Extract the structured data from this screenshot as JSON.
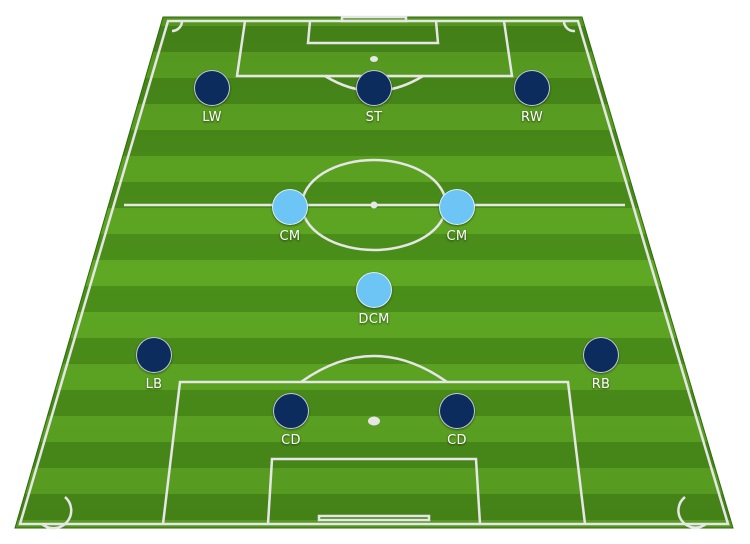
{
  "pitch": {
    "colors": {
      "grass_light": "#5ea823",
      "grass_dark": "#3f7d13",
      "lines": "#e6e6e6"
    }
  },
  "players": [
    {
      "id": "lw",
      "position": "LW",
      "team": "attack"
    },
    {
      "id": "st",
      "position": "ST",
      "team": "attack"
    },
    {
      "id": "rw",
      "position": "RW",
      "team": "attack"
    },
    {
      "id": "cm-left",
      "position": "CM",
      "team": "midfield"
    },
    {
      "id": "cm-right",
      "position": "CM",
      "team": "midfield"
    },
    {
      "id": "dcm",
      "position": "DCM",
      "team": "midfield"
    },
    {
      "id": "lb",
      "position": "LB",
      "team": "defense"
    },
    {
      "id": "rb",
      "position": "RB",
      "team": "defense"
    },
    {
      "id": "cd-left",
      "position": "CD",
      "team": "defense"
    },
    {
      "id": "cd-right",
      "position": "CD",
      "team": "defense"
    }
  ],
  "token_colors": {
    "attack": "#0d2c5e",
    "defense": "#0d2c5e",
    "midfield": "#6cc5f5"
  }
}
